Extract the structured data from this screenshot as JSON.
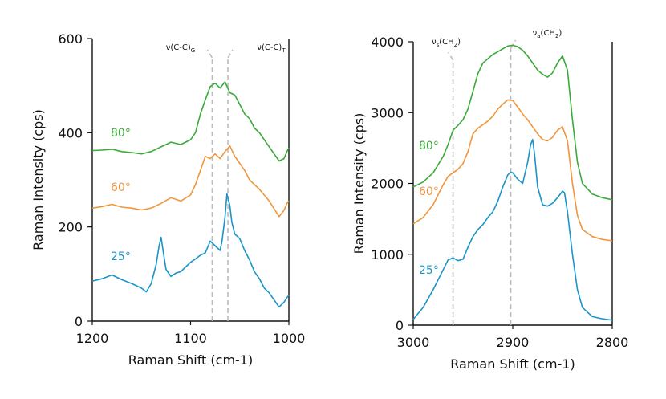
{
  "chart_data": [
    {
      "type": "line",
      "xlabel": "Raman Shift (cm-1)",
      "ylabel": "Raman Intensity (cps)",
      "xlim": [
        1200,
        1000
      ],
      "ylim": [
        0,
        600
      ],
      "x_reversed": true,
      "xticks": [
        1200,
        1100,
        1000
      ],
      "yticks": [
        0,
        200,
        400,
        600
      ],
      "grid": false,
      "reference_lines": [
        {
          "x": 1078,
          "label_main": "ν(C-C)",
          "label_sub": "G"
        },
        {
          "x": 1062,
          "label_main": "ν(C-C)",
          "label_sub": "T"
        }
      ],
      "series": [
        {
          "name": "80°",
          "color": "#3aaa3a",
          "x": [
            1200,
            1190,
            1180,
            1170,
            1160,
            1150,
            1140,
            1130,
            1120,
            1110,
            1100,
            1095,
            1090,
            1085,
            1080,
            1075,
            1070,
            1065,
            1060,
            1055,
            1050,
            1045,
            1040,
            1035,
            1030,
            1020,
            1010,
            1005,
            1002,
            1000
          ],
          "y": [
            362,
            363,
            365,
            360,
            358,
            355,
            360,
            370,
            380,
            375,
            385,
            400,
            440,
            470,
            498,
            505,
            495,
            508,
            485,
            480,
            460,
            440,
            430,
            410,
            400,
            370,
            340,
            345,
            360,
            368
          ]
        },
        {
          "name": "60°",
          "color": "#f0963c",
          "x": [
            1200,
            1190,
            1180,
            1170,
            1160,
            1150,
            1140,
            1130,
            1120,
            1110,
            1100,
            1095,
            1090,
            1085,
            1080,
            1075,
            1070,
            1065,
            1060,
            1055,
            1050,
            1045,
            1040,
            1035,
            1030,
            1020,
            1010,
            1005,
            1002,
            1000
          ],
          "y": [
            240,
            243,
            248,
            242,
            240,
            236,
            240,
            250,
            262,
            255,
            268,
            290,
            320,
            350,
            345,
            355,
            345,
            360,
            372,
            350,
            335,
            320,
            300,
            290,
            280,
            255,
            222,
            235,
            250,
            255
          ]
        },
        {
          "name": "25°",
          "color": "#1b94c8",
          "x": [
            1200,
            1190,
            1180,
            1170,
            1160,
            1150,
            1145,
            1140,
            1135,
            1132,
            1130,
            1128,
            1125,
            1120,
            1115,
            1110,
            1105,
            1100,
            1095,
            1090,
            1085,
            1080,
            1075,
            1070,
            1068,
            1065,
            1063,
            1060,
            1058,
            1055,
            1050,
            1045,
            1040,
            1035,
            1030,
            1025,
            1020,
            1015,
            1010,
            1005,
            1002,
            1000
          ],
          "y": [
            85,
            90,
            98,
            88,
            80,
            70,
            62,
            80,
            120,
            160,
            178,
            150,
            110,
            95,
            102,
            105,
            115,
            125,
            132,
            140,
            145,
            170,
            160,
            150,
            170,
            220,
            270,
            245,
            210,
            185,
            175,
            150,
            130,
            105,
            90,
            70,
            60,
            45,
            30,
            40,
            50,
            55
          ]
        }
      ]
    },
    {
      "type": "line",
      "xlabel": "Raman Shift (cm-1)",
      "ylabel": "Raman Intensity (cps)",
      "xlim": [
        3000,
        2800
      ],
      "ylim": [
        0,
        4000
      ],
      "x_reversed": true,
      "xticks": [
        3000,
        2900,
        2800
      ],
      "yticks": [
        0,
        1000,
        2000,
        3000,
        4000
      ],
      "grid": false,
      "reference_lines": [
        {
          "x": 2960,
          "label_main": "ν",
          "label_sub": "s",
          "label_suffix": "(CH",
          "label_sub2": "2",
          "label_end": ")"
        },
        {
          "x": 2902,
          "label_main": "ν",
          "label_sub": "a",
          "label_suffix": "(CH",
          "label_sub2": "2",
          "label_end": ")"
        }
      ],
      "series": [
        {
          "name": "80°",
          "color": "#3aaa3a",
          "x": [
            3000,
            2990,
            2980,
            2970,
            2965,
            2960,
            2955,
            2950,
            2945,
            2940,
            2935,
            2930,
            2925,
            2920,
            2915,
            2910,
            2905,
            2900,
            2895,
            2890,
            2885,
            2880,
            2875,
            2870,
            2865,
            2860,
            2855,
            2850,
            2845,
            2840,
            2835,
            2830,
            2820,
            2810,
            2800
          ],
          "y": [
            1950,
            2020,
            2150,
            2380,
            2550,
            2750,
            2820,
            2900,
            3050,
            3300,
            3550,
            3700,
            3760,
            3820,
            3860,
            3900,
            3940,
            3950,
            3930,
            3880,
            3800,
            3700,
            3600,
            3540,
            3500,
            3560,
            3700,
            3800,
            3600,
            2900,
            2300,
            2000,
            1850,
            1800,
            1770
          ]
        },
        {
          "name": "60°",
          "color": "#f0963c",
          "x": [
            3000,
            2990,
            2980,
            2970,
            2965,
            2960,
            2955,
            2950,
            2945,
            2940,
            2935,
            2930,
            2925,
            2920,
            2915,
            2910,
            2905,
            2900,
            2895,
            2890,
            2885,
            2880,
            2875,
            2870,
            2865,
            2860,
            2855,
            2850,
            2845,
            2840,
            2835,
            2830,
            2820,
            2810,
            2800
          ],
          "y": [
            1430,
            1520,
            1700,
            1980,
            2100,
            2150,
            2200,
            2280,
            2450,
            2700,
            2780,
            2830,
            2880,
            2950,
            3050,
            3120,
            3180,
            3170,
            3080,
            2980,
            2900,
            2800,
            2700,
            2620,
            2600,
            2650,
            2750,
            2800,
            2600,
            2000,
            1550,
            1350,
            1250,
            1210,
            1190
          ]
        },
        {
          "name": "25°",
          "color": "#1b94c8",
          "x": [
            3000,
            2990,
            2980,
            2970,
            2965,
            2960,
            2955,
            2950,
            2945,
            2940,
            2935,
            2930,
            2925,
            2920,
            2915,
            2910,
            2905,
            2902,
            2900,
            2895,
            2890,
            2885,
            2882,
            2880,
            2878,
            2875,
            2870,
            2865,
            2860,
            2855,
            2850,
            2848,
            2845,
            2840,
            2835,
            2830,
            2820,
            2810,
            2800
          ],
          "y": [
            80,
            250,
            500,
            780,
            920,
            950,
            910,
            930,
            1100,
            1250,
            1350,
            1420,
            1520,
            1600,
            1750,
            1950,
            2120,
            2160,
            2150,
            2060,
            2000,
            2300,
            2550,
            2620,
            2400,
            1950,
            1700,
            1680,
            1720,
            1800,
            1890,
            1870,
            1600,
            1000,
            500,
            250,
            120,
            90,
            70
          ]
        }
      ]
    }
  ]
}
